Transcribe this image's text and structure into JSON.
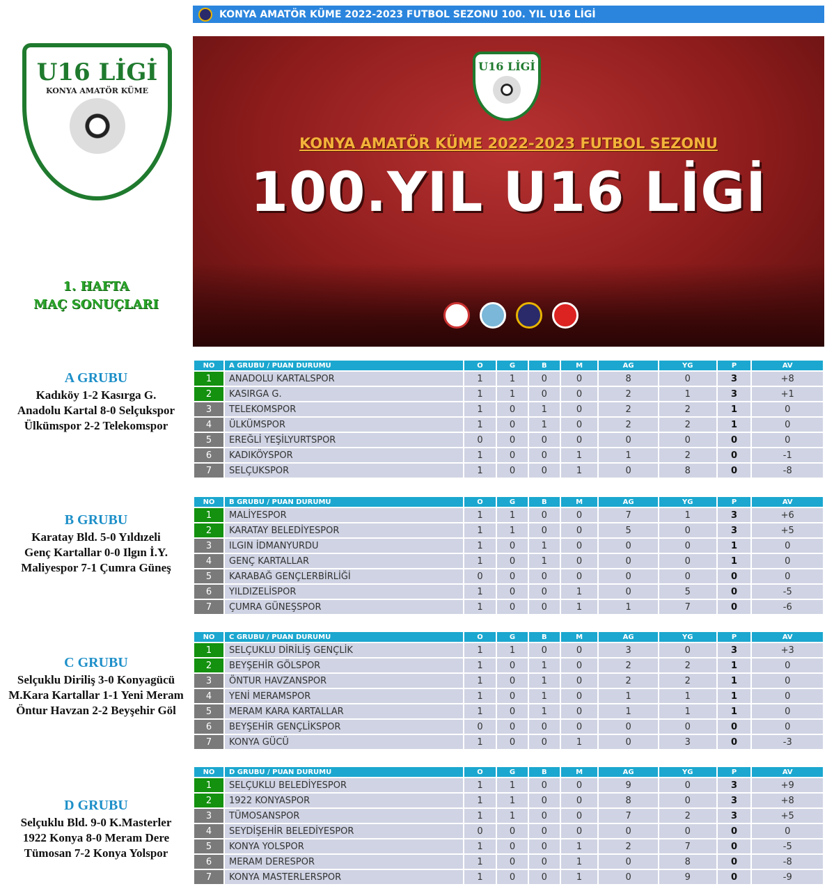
{
  "title_bar": "KONYA AMATÖR KÜME 2022-2023 FUTBOL SEZONU 100. YIL U16 LİGİ",
  "logo": {
    "title": "U16 LİGİ",
    "subtitle": "KONYA AMATÖR KÜME"
  },
  "banner": {
    "logo_title": "U16 LİGİ",
    "subtitle": "KONYA AMATÖR KÜME 2022-2023 FUTBOL SEZONU",
    "headline": "100.YIL U16 LİGİ"
  },
  "week": {
    "line1": "1. HAFTA",
    "line2": "MAÇ SONUÇLARI"
  },
  "colors": {
    "title_bar": "#2b85dd",
    "header": "#1ba7cf",
    "qualified": "#13910f",
    "row": "#cfd3e3",
    "banner": "#8e1c1c"
  },
  "columns": [
    "NO",
    "O",
    "G",
    "B",
    "M",
    "AG",
    "YG",
    "P",
    "AV"
  ],
  "groups": [
    {
      "name": "A GRUBU",
      "header": "A GRUBU / PUAN DURUMU",
      "results": [
        "Kadıköy 1-2 Kasırga G.",
        "Anadolu Kartal 8-0 Selçukspor",
        "Ülkümspor 2-2 Telekomspor"
      ],
      "rows": [
        [
          "1",
          "ANADOLU KARTALSPOR",
          "1",
          "1",
          "0",
          "0",
          "8",
          "0",
          "3",
          "+8"
        ],
        [
          "2",
          "KASIRGA G.",
          "1",
          "1",
          "0",
          "0",
          "2",
          "1",
          "3",
          "+1"
        ],
        [
          "3",
          "TELEKOMSPOR",
          "1",
          "0",
          "1",
          "0",
          "2",
          "2",
          "1",
          "0"
        ],
        [
          "4",
          "ÜLKÜMSPOR",
          "1",
          "0",
          "1",
          "0",
          "2",
          "2",
          "1",
          "0"
        ],
        [
          "5",
          "EREĞLİ YEŞİLYURTSPOR",
          "0",
          "0",
          "0",
          "0",
          "0",
          "0",
          "0",
          "0"
        ],
        [
          "6",
          "KADIKÖYSPOR",
          "1",
          "0",
          "0",
          "1",
          "1",
          "2",
          "0",
          "-1"
        ],
        [
          "7",
          "SELÇUKSPOR",
          "1",
          "0",
          "0",
          "1",
          "0",
          "8",
          "0",
          "-8"
        ]
      ]
    },
    {
      "name": "B GRUBU",
      "header": "B GRUBU / PUAN DURUMU",
      "results": [
        "Karatay Bld. 5-0 Yıldızeli",
        "Genç Kartallar 0-0 Ilgın İ.Y.",
        "Maliyespor 7-1 Çumra Güneş"
      ],
      "rows": [
        [
          "1",
          "MALİYESPOR",
          "1",
          "1",
          "0",
          "0",
          "7",
          "1",
          "3",
          "+6"
        ],
        [
          "2",
          "KARATAY BELEDİYESPOR",
          "1",
          "1",
          "0",
          "0",
          "5",
          "0",
          "3",
          "+5"
        ],
        [
          "3",
          "ILGIN İDMANYURDU",
          "1",
          "0",
          "1",
          "0",
          "0",
          "0",
          "1",
          "0"
        ],
        [
          "4",
          "GENÇ KARTALLAR",
          "1",
          "0",
          "1",
          "0",
          "0",
          "0",
          "1",
          "0"
        ],
        [
          "5",
          "KARABAĞ GENÇLERBİRLİĞİ",
          "0",
          "0",
          "0",
          "0",
          "0",
          "0",
          "0",
          "0"
        ],
        [
          "6",
          "YILDIZELİSPOR",
          "1",
          "0",
          "0",
          "1",
          "0",
          "5",
          "0",
          "-5"
        ],
        [
          "7",
          "ÇUMRA GÜNEŞSPOR",
          "1",
          "0",
          "0",
          "1",
          "1",
          "7",
          "0",
          "-6"
        ]
      ]
    },
    {
      "name": "C GRUBU",
      "header": "C GRUBU / PUAN DURUMU",
      "results": [
        "Selçuklu Diriliş 3-0 Konyagücü",
        "M.Kara Kartallar 1-1 Yeni Meram",
        "Öntur Havzan 2-2 Beyşehir Göl"
      ],
      "rows": [
        [
          "1",
          "SELÇUKLU DİRİLİŞ GENÇLİK",
          "1",
          "1",
          "0",
          "0",
          "3",
          "0",
          "3",
          "+3"
        ],
        [
          "2",
          "BEYŞEHİR GÖLSPOR",
          "1",
          "0",
          "1",
          "0",
          "2",
          "2",
          "1",
          "0"
        ],
        [
          "3",
          "ÖNTUR HAVZANSPOR",
          "1",
          "0",
          "1",
          "0",
          "2",
          "2",
          "1",
          "0"
        ],
        [
          "4",
          "YENİ MERAMSPOR",
          "1",
          "0",
          "1",
          "0",
          "1",
          "1",
          "1",
          "0"
        ],
        [
          "5",
          "MERAM KARA KARTALLAR",
          "1",
          "0",
          "1",
          "0",
          "1",
          "1",
          "1",
          "0"
        ],
        [
          "6",
          "BEYŞEHİR GENÇLİKSPOR",
          "0",
          "0",
          "0",
          "0",
          "0",
          "0",
          "0",
          "0"
        ],
        [
          "7",
          "KONYA GÜCÜ",
          "1",
          "0",
          "0",
          "1",
          "0",
          "3",
          "0",
          "-3"
        ]
      ]
    },
    {
      "name": "D GRUBU",
      "header": "D GRUBU / PUAN DURUMU",
      "results": [
        "Selçuklu Bld. 9-0 K.Masterler",
        "1922 Konya 8-0 Meram Dere",
        "Tümosan 7-2 Konya Yolspor"
      ],
      "rows": [
        [
          "1",
          "SELÇUKLU BELEDİYESPOR",
          "1",
          "1",
          "0",
          "0",
          "9",
          "0",
          "3",
          "+9"
        ],
        [
          "2",
          "1922 KONYASPOR",
          "1",
          "1",
          "0",
          "0",
          "8",
          "0",
          "3",
          "+8"
        ],
        [
          "3",
          "TÜMOSANSPOR",
          "1",
          "1",
          "0",
          "0",
          "7",
          "2",
          "3",
          "+5"
        ],
        [
          "4",
          "SEYDİŞEHİR BELEDİYESPOR",
          "0",
          "0",
          "0",
          "0",
          "0",
          "0",
          "0",
          "0"
        ],
        [
          "5",
          "KONYA YOLSPOR",
          "1",
          "0",
          "0",
          "1",
          "2",
          "7",
          "0",
          "-5"
        ],
        [
          "6",
          "MERAM DERESPOR",
          "1",
          "0",
          "0",
          "1",
          "0",
          "8",
          "0",
          "-8"
        ],
        [
          "7",
          "KONYA MASTERLERSPOR",
          "1",
          "0",
          "0",
          "1",
          "0",
          "9",
          "0",
          "-9"
        ]
      ]
    }
  ]
}
